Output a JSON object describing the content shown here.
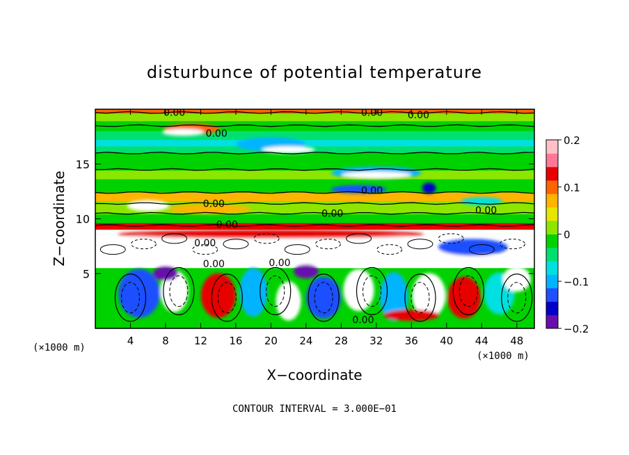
{
  "chart_data": {
    "type": "heatmap",
    "title": "disturbunce of potential temperature",
    "xlabel": "X−coordinate",
    "ylabel": "Z−coordinate",
    "x_unit_left": "(×1000 m)",
    "x_unit_right": "(×1000 m)",
    "xlim": [
      0,
      50
    ],
    "ylim": [
      0,
      20
    ],
    "x_ticks": [
      4,
      8,
      12,
      16,
      20,
      24,
      28,
      32,
      36,
      40,
      44,
      48
    ],
    "y_ticks": [
      5,
      10,
      15
    ],
    "colorbar": {
      "range": [
        -0.2,
        0.2
      ],
      "ticks": [
        {
          "value": 0.2,
          "label": "0.2"
        },
        {
          "value": 0.1,
          "label": "0.1"
        },
        {
          "value": 0,
          "label": "0"
        },
        {
          "value": -0.1,
          "label": "−0.1"
        },
        {
          "value": -0.2,
          "label": "−0.2"
        }
      ],
      "colors": [
        "#6a0dad",
        "#0000c8",
        "#1e50ff",
        "#00b4ff",
        "#00e0e0",
        "#00e070",
        "#00d200",
        "#8ce600",
        "#e6e600",
        "#ffb400",
        "#ff6400",
        "#e60000",
        "#ff7896",
        "#ffc0c8"
      ]
    },
    "contour_labels": [
      {
        "x": 9.0,
        "z": 19.7,
        "text": "0.00"
      },
      {
        "x": 31.5,
        "z": 19.7,
        "text": "0.00"
      },
      {
        "x": 36.8,
        "z": 19.5,
        "text": "0.00"
      },
      {
        "x": 13.8,
        "z": 17.8,
        "text": "0.00"
      },
      {
        "x": 31.5,
        "z": 12.6,
        "text": "0.00"
      },
      {
        "x": 13.5,
        "z": 11.4,
        "text": "0.00"
      },
      {
        "x": 27.0,
        "z": 10.5,
        "text": "0.00"
      },
      {
        "x": 44.5,
        "z": 10.8,
        "text": "0.00"
      },
      {
        "x": 15.0,
        "z": 9.5,
        "text": "0.00"
      },
      {
        "x": 12.5,
        "z": 7.8,
        "text": "0.00"
      },
      {
        "x": 13.5,
        "z": 5.9,
        "text": "0.00"
      },
      {
        "x": 21.0,
        "z": 6.0,
        "text": "0.00"
      },
      {
        "x": 30.5,
        "z": 0.8,
        "text": "0.00"
      }
    ],
    "footnote": "CONTOUR INTERVAL = 3.000E−01"
  }
}
